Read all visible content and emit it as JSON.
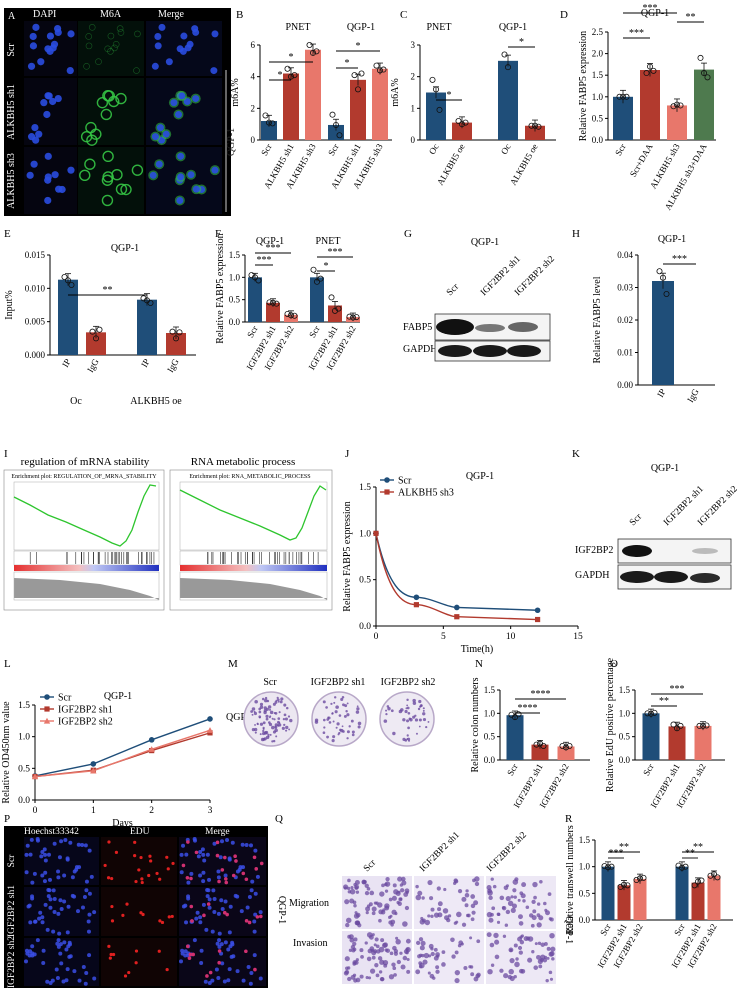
{
  "colors": {
    "dark_blue": "#1f4e79",
    "dark_red": "#b23a2e",
    "salmon": "#e8776b",
    "green": "#4e7a4e",
    "gsea_green": "#2ec52e",
    "dapi_blue": "#2a4ce0",
    "m6a_green": "#35c545",
    "edu_red": "#e02020",
    "crystal_violet": "#6b4ba0"
  },
  "panels": {
    "A": {
      "letter": "A",
      "columns": [
        "DAPI",
        "M6A",
        "Merge"
      ],
      "rows": [
        "Scr",
        "ALKBH5 sh1",
        "ALKBH5 sh3"
      ],
      "side_label": "QGP-1"
    },
    "B": {
      "letter": "B",
      "groups": [
        "PNET",
        "QGP-1"
      ],
      "ylabel": "m6A%",
      "categories": [
        "Scr",
        "ALKBH5 sh1",
        "ALKBH5 sh3",
        "Scr",
        "ALKBH5 sh1",
        "ALKBH5 sh3"
      ],
      "yticks": [
        "0",
        "2",
        "4",
        "6"
      ],
      "sig": [
        "*",
        "*",
        "*",
        "*"
      ]
    },
    "C": {
      "letter": "C",
      "groups": [
        "PNET",
        "QGP-1"
      ],
      "ylabel": "m6A%",
      "categories": [
        "Oc",
        "ALKBH5 oe",
        "Oc",
        "ALKBH5 oe"
      ],
      "yticks": [
        "0",
        "1",
        "2",
        "3"
      ],
      "sig": [
        "*",
        "*"
      ]
    },
    "D": {
      "letter": "D",
      "title": "QGP-1",
      "ylabel": "Relative FABP5 expression",
      "categories": [
        "Scr",
        "Scr+DAA",
        "ALKBH5 sh3",
        "ALKBH5 sh3+DAA"
      ],
      "yticks": [
        "0.0",
        "0.5",
        "1.0",
        "1.5",
        "2.0",
        "2.5"
      ],
      "sig": [
        "***",
        "***",
        "**"
      ]
    },
    "E": {
      "letter": "E",
      "title": "QGP-1",
      "ylabel": "Input%",
      "categories": [
        "IP",
        "IgG",
        "IP",
        "IgG"
      ],
      "groups": [
        "Oc",
        "ALKBH5 oe"
      ],
      "yticks": [
        "0.000",
        "0.005",
        "0.010",
        "0.015"
      ],
      "sig": [
        "**"
      ]
    },
    "F": {
      "letter": "F",
      "groups": [
        "QGP-1",
        "PNET"
      ],
      "ylabel": "Relative FABP5 expression",
      "categories": [
        "Scr",
        "IGF2BP2 sh1",
        "IGF2BP2 sh2",
        "Scr",
        "IGF2BP2 sh1",
        "IGF2BP2 sh2"
      ],
      "yticks": [
        "0.0",
        "0.5",
        "1.0",
        "1.5"
      ],
      "sig": [
        "***",
        "***",
        "*",
        "***"
      ]
    },
    "G": {
      "letter": "G",
      "title": "QGP-1",
      "lanes": [
        "Scr",
        "IGF2BP2 sh1",
        "IGF2BP2 sh2"
      ],
      "bands": [
        "FABP5",
        "GAPDH"
      ]
    },
    "H": {
      "letter": "H",
      "title": "QGP-1",
      "ylabel": "Relative FABP5 level",
      "categories": [
        "IP",
        "IgG"
      ],
      "yticks": [
        "0.00",
        "0.01",
        "0.02",
        "0.03",
        "0.04"
      ],
      "sig": [
        "***"
      ]
    },
    "I": {
      "letter": "I",
      "left_title": "regulation of mRNA stability",
      "left_plot_title": "Enrichment plot: REGULATION_OF_MRNA_STABILITY",
      "right_title": "RNA metabolic process",
      "right_plot_title": "Enrichment plot: RNA_METABOLIC_PROCESS"
    },
    "J": {
      "letter": "J",
      "title": "QGP-1",
      "ylabel": "Relative FABP5 expression",
      "xlabel": "Time(h)",
      "xticks": [
        "0",
        "5",
        "10",
        "15"
      ],
      "yticks": [
        "0.0",
        "0.5",
        "1.0",
        "1.5"
      ]
    },
    "K": {
      "letter": "K",
      "title": "QGP-1",
      "lanes": [
        "Scr",
        "IGF2BP2 sh1",
        "IGF2BP2 sh2"
      ],
      "bands": [
        "IGF2BP2",
        "GAPDH"
      ]
    },
    "L": {
      "letter": "L",
      "title": "QGP-1",
      "ylabel": "Relative OD450nm value",
      "xlabel": "Days",
      "xticks": [
        "0",
        "1",
        "2",
        "3"
      ],
      "yticks": [
        "0.0",
        "0.5",
        "1.0",
        "1.5"
      ]
    },
    "M": {
      "letter": "M",
      "columns": [
        "Scr",
        "IGF2BP2 sh1",
        "IGF2BP2 sh2"
      ],
      "row_label": "QGP-1"
    },
    "N": {
      "letter": "N",
      "ylabel": "Relative colon numbers",
      "categories": [
        "Scr",
        "IGF2BP2 sh1",
        "IGF2BP2 sh2"
      ],
      "yticks": [
        "0.0",
        "0.5",
        "1.0",
        "1.5"
      ],
      "sig": [
        "****",
        "****"
      ]
    },
    "O": {
      "letter": "O",
      "ylabel": "Relative EdU positive percentage",
      "categories": [
        "Scr",
        "IGF2BP2 sh1",
        "IGF2BP2 sh2"
      ],
      "yticks": [
        "0.0",
        "0.5",
        "1.0",
        "1.5"
      ],
      "sig": [
        "**",
        "***"
      ]
    },
    "P": {
      "letter": "P",
      "columns": [
        "Hoechst33342",
        "EDU",
        "Merge"
      ],
      "rows": [
        "Scr",
        "IGF2BP2 sh1",
        "IGF2BP2 sh2"
      ],
      "side_label": "QGP-1"
    },
    "Q": {
      "letter": "Q",
      "columns": [
        "Scr",
        "IGF2BP2 sh1",
        "IGF2BP2 sh2"
      ],
      "rows": [
        "Migration",
        "Invasion"
      ],
      "side_label": "QGP-1"
    },
    "R": {
      "letter": "R",
      "ylabel": "Relative transwell numbers",
      "categories": [
        "Scr",
        "IGF2BP2 sh1",
        "IGF2BP2 sh2",
        "Scr",
        "IGF2BP2 sh1",
        "IGF2BP2 sh2"
      ],
      "yticks": [
        "0.0",
        "0.5",
        "1.0",
        "1.5"
      ],
      "sig": [
        "**",
        "***",
        "**",
        "**"
      ]
    }
  },
  "chart_data": [
    {
      "panel": "B",
      "type": "bar",
      "ylabel": "m6A%",
      "ylim": [
        0,
        6
      ],
      "categories": [
        "Scr",
        "ALKBH5 sh1",
        "ALKBH5 sh3",
        "Scr",
        "ALKBH5 sh1",
        "ALKBH5 sh3"
      ],
      "values": [
        1.2,
        4.2,
        5.7,
        0.95,
        3.8,
        4.5
      ]
    },
    {
      "panel": "C",
      "type": "bar",
      "ylabel": "m6A%",
      "ylim": [
        0,
        3
      ],
      "categories": [
        "Oc",
        "ALKBH5 oe",
        "Oc",
        "ALKBH5 oe"
      ],
      "values": [
        1.5,
        0.55,
        2.5,
        0.45
      ]
    },
    {
      "panel": "D",
      "type": "bar",
      "title": "QGP-1",
      "ylabel": "Relative FABP5 expression",
      "ylim": [
        0,
        2.5
      ],
      "categories": [
        "Scr",
        "Scr+DAA",
        "ALKBH5 sh3",
        "ALKBH5 sh3+DAA"
      ],
      "values": [
        1.0,
        1.62,
        0.8,
        1.63
      ]
    },
    {
      "panel": "E",
      "type": "bar",
      "title": "QGP-1",
      "ylabel": "Input%",
      "ylim": [
        0,
        0.015
      ],
      "categories": [
        "IP",
        "IgG",
        "IP",
        "IgG"
      ],
      "values": [
        0.0113,
        0.0034,
        0.0083,
        0.0033
      ]
    },
    {
      "panel": "F",
      "type": "bar",
      "ylabel": "Relative FABP5 expression",
      "ylim": [
        0,
        1.5
      ],
      "categories": [
        "Scr",
        "IGF2BP2 sh1",
        "IGF2BP2 sh2",
        "Scr",
        "IGF2BP2 sh1",
        "IGF2BP2 sh2"
      ],
      "values": [
        1.0,
        0.43,
        0.16,
        1.0,
        0.37,
        0.11
      ]
    },
    {
      "panel": "H",
      "type": "bar",
      "title": "QGP-1",
      "ylabel": "Relative FABP5 level",
      "ylim": [
        0,
        0.04
      ],
      "categories": [
        "IP",
        "IgG"
      ],
      "values": [
        0.032,
        0.0
      ]
    },
    {
      "panel": "J",
      "type": "line",
      "title": "QGP-1",
      "xlabel": "Time(h)",
      "ylabel": "Relative FABP5 expression",
      "xlim": [
        0,
        15
      ],
      "ylim": [
        0,
        1.5
      ],
      "series": [
        {
          "name": "Scr",
          "x": [
            0,
            3,
            6,
            12
          ],
          "values": [
            1.0,
            0.31,
            0.2,
            0.17
          ]
        },
        {
          "name": "ALKBH5 sh3",
          "x": [
            0,
            3,
            6,
            12
          ],
          "values": [
            1.0,
            0.23,
            0.1,
            0.07
          ]
        }
      ]
    },
    {
      "panel": "L",
      "type": "line",
      "title": "QGP-1",
      "xlabel": "Days",
      "ylabel": "Relative OD450nm value",
      "xlim": [
        0,
        3
      ],
      "ylim": [
        0,
        1.5
      ],
      "series": [
        {
          "name": "Scr",
          "x": [
            0,
            1,
            2,
            3
          ],
          "values": [
            0.38,
            0.57,
            0.95,
            1.28
          ]
        },
        {
          "name": "IGF2BP2 sh1",
          "x": [
            0,
            1,
            2,
            3
          ],
          "values": [
            0.37,
            0.47,
            0.78,
            1.06
          ]
        },
        {
          "name": "IGF2BP2 sh2",
          "x": [
            0,
            1,
            2,
            3
          ],
          "values": [
            0.37,
            0.46,
            0.8,
            1.1
          ]
        }
      ]
    },
    {
      "panel": "N",
      "type": "bar",
      "ylabel": "Relative colon numbers",
      "ylim": [
        0,
        1.5
      ],
      "categories": [
        "Scr",
        "IGF2BP2 sh1",
        "IGF2BP2 sh2"
      ],
      "values": [
        0.96,
        0.33,
        0.29
      ]
    },
    {
      "panel": "O",
      "type": "bar",
      "ylabel": "Relative EdU positive percentage",
      "ylim": [
        0,
        1.5
      ],
      "categories": [
        "Scr",
        "IGF2BP2 sh1",
        "IGF2BP2 sh2"
      ],
      "values": [
        1.0,
        0.72,
        0.73
      ]
    },
    {
      "panel": "R",
      "type": "bar",
      "ylabel": "Relative transwell numbers",
      "ylim": [
        0,
        1.5
      ],
      "categories": [
        "Scr",
        "IGF2BP2 sh1",
        "IGF2BP2 sh2",
        "Scr",
        "IGF2BP2 sh1",
        "IGF2BP2 sh2"
      ],
      "values": [
        1.0,
        0.65,
        0.77,
        1.0,
        0.7,
        0.83
      ]
    }
  ]
}
